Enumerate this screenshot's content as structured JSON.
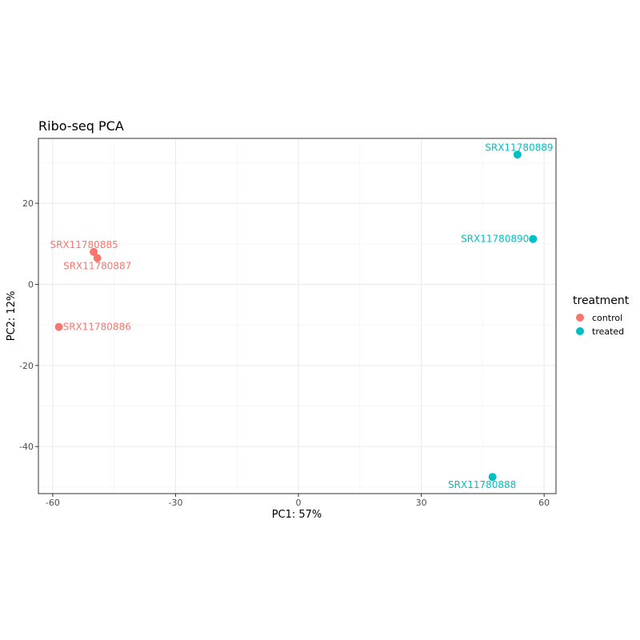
{
  "chart_data": {
    "type": "scatter",
    "title": "Ribo-seq PCA",
    "xlabel": "PC1: 57%",
    "ylabel": "PC2: 12%",
    "xlim": [
      -63.5,
      62.9
    ],
    "ylim": [
      -51.6,
      36.0
    ],
    "x_ticks": [
      -60,
      -30,
      0,
      30,
      60
    ],
    "x_tick_labels": [
      "-60",
      "-30",
      "0",
      "30",
      "60"
    ],
    "y_ticks": [
      -40,
      -20,
      0,
      20
    ],
    "y_tick_labels": [
      "-40",
      "-20",
      "0",
      "20"
    ],
    "grid": true,
    "legend": {
      "title": "treatment",
      "position": "right",
      "entries": [
        {
          "label": "control",
          "color": "#F8766D"
        },
        {
          "label": "treated",
          "color": "#00BFC4"
        }
      ]
    },
    "series": [
      {
        "name": "control",
        "color": "#F8766D",
        "points": [
          {
            "label": "SRX11780885",
            "x": -50.0,
            "y": 8.0
          },
          {
            "label": "SRX11780887",
            "x": -49.1,
            "y": 6.5
          },
          {
            "label": "SRX11780886",
            "x": -58.5,
            "y": -10.5
          }
        ]
      },
      {
        "name": "treated",
        "color": "#00BFC4",
        "points": [
          {
            "label": "SRX11780889",
            "x": 53.5,
            "y": 32.0
          },
          {
            "label": "SRX11780890",
            "x": 57.3,
            "y": 11.2
          },
          {
            "label": "SRX11780888",
            "x": 47.4,
            "y": -47.5
          }
        ]
      }
    ]
  }
}
